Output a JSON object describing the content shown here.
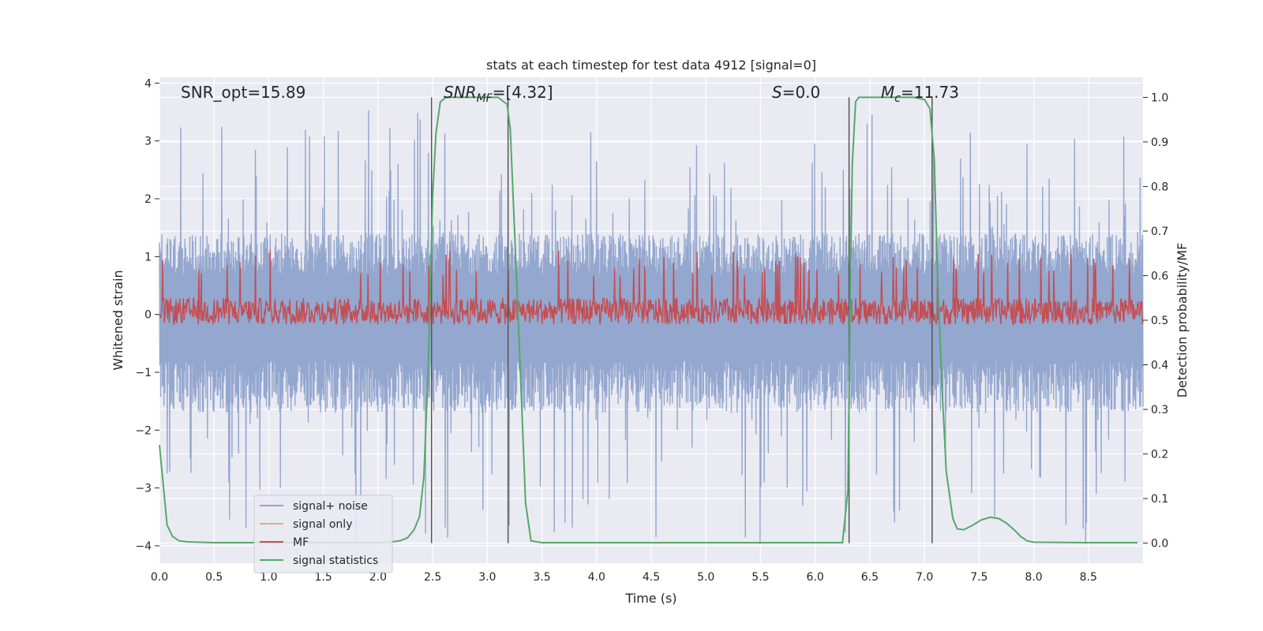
{
  "chart_data": {
    "type": "line",
    "title": "stats at each timestep for test data 4912 [signal=0]",
    "xlabel": "Time (s)",
    "ylabel": "Whitened strain",
    "y2label": "Detection probability/MF",
    "xlim": [
      0.0,
      9.0
    ],
    "ylim": [
      -4.3,
      4.1
    ],
    "y2lim": [
      -0.045,
      1.045
    ],
    "xticks": [
      0.0,
      0.5,
      1.0,
      1.5,
      2.0,
      2.5,
      3.0,
      3.5,
      4.0,
      4.5,
      5.0,
      5.5,
      6.0,
      6.5,
      7.0,
      7.5,
      8.0,
      8.5
    ],
    "xtick_labels": [
      "0.0",
      "0.5",
      "1.0",
      "1.5",
      "2.0",
      "2.5",
      "3.0",
      "3.5",
      "4.0",
      "4.5",
      "5.0",
      "5.5",
      "6.0",
      "6.5",
      "7.0",
      "7.5",
      "8.0",
      "8.5"
    ],
    "yticks": [
      4,
      3,
      2,
      1,
      0,
      -1,
      -2,
      -3,
      -4
    ],
    "ytick_labels": [
      "4",
      "3",
      "2",
      "1",
      "0",
      "−1",
      "−2",
      "−3",
      "−4"
    ],
    "y2ticks": [
      1.0,
      0.9,
      0.8,
      0.7,
      0.6,
      0.5,
      0.4,
      0.3,
      0.2,
      0.1,
      0.0
    ],
    "y2tick_labels": [
      "1.0",
      "0.9",
      "0.8",
      "0.7",
      "0.6",
      "0.5",
      "0.4",
      "0.3",
      "0.2",
      "0.1",
      "0.0"
    ],
    "grid": true,
    "legend_position": "lower-left",
    "series": [
      {
        "name": "signal+ noise",
        "color": "#8fa3cc",
        "axis": "left",
        "description_stats": {
          "x_range": [
            0.0,
            9.0
          ],
          "band_min": -1.7,
          "band_max": 1.4,
          "peak_max": 3.55,
          "peak_min": -4.0
        }
      },
      {
        "name": "signal only",
        "color": "#e8a588",
        "axis": "left"
      },
      {
        "name": "MF",
        "color": "#c44e52",
        "axis": "right",
        "description_stats": {
          "x_range": [
            0.0,
            9.0
          ],
          "base": 0.52,
          "typical_max": 0.6,
          "peak_max": 0.66
        }
      },
      {
        "name": "signal statistics",
        "color": "#55a868",
        "axis": "right",
        "x": [
          0.0,
          0.07,
          0.12,
          0.18,
          0.25,
          0.35,
          0.5,
          1.0,
          1.5,
          2.0,
          2.1,
          2.2,
          2.27,
          2.33,
          2.38,
          2.42,
          2.46,
          2.5,
          2.53,
          2.57,
          2.62,
          2.7,
          2.8,
          2.9,
          3.0,
          3.1,
          3.15,
          3.18,
          3.21,
          3.25,
          3.3,
          3.35,
          3.4,
          3.5,
          4.0,
          4.5,
          5.0,
          5.5,
          6.0,
          6.25,
          6.3,
          6.32,
          6.34,
          6.37,
          6.4,
          6.5,
          6.7,
          6.9,
          7.0,
          7.05,
          7.09,
          7.12,
          7.16,
          7.2,
          7.26,
          7.3,
          7.36,
          7.44,
          7.52,
          7.6,
          7.68,
          7.75,
          7.82,
          7.88,
          7.94,
          8.0,
          8.5,
          8.95
        ],
        "values": [
          0.22,
          0.04,
          0.015,
          0.005,
          0.003,
          0.002,
          0.001,
          0.001,
          0.001,
          0.001,
          0.002,
          0.005,
          0.012,
          0.03,
          0.06,
          0.15,
          0.4,
          0.78,
          0.92,
          0.99,
          1.0,
          1.0,
          1.0,
          1.0,
          1.0,
          1.0,
          0.99,
          0.985,
          0.93,
          0.7,
          0.4,
          0.09,
          0.005,
          0.001,
          0.001,
          0.001,
          0.001,
          0.001,
          0.001,
          0.001,
          0.12,
          0.55,
          0.85,
          0.99,
          1.0,
          1.0,
          1.0,
          1.0,
          0.995,
          0.975,
          0.86,
          0.6,
          0.35,
          0.16,
          0.055,
          0.032,
          0.03,
          0.04,
          0.052,
          0.058,
          0.055,
          0.045,
          0.03,
          0.015,
          0.005,
          0.002,
          0.001,
          0.001
        ]
      }
    ],
    "vertical_lines": [
      {
        "x": 2.49,
        "color": "#555555"
      },
      {
        "x": 3.19,
        "color": "#555555"
      },
      {
        "x": 6.31,
        "color": "#555555"
      },
      {
        "x": 7.07,
        "color": "#555555"
      }
    ],
    "annotations": {
      "snr_opt": "SNR_opt=15.89",
      "snr_mf_name": "SNR",
      "snr_mf_sub": "MF",
      "snr_mf_value": "=[4.32]",
      "s_name": "S",
      "s_value": "=0.0",
      "mc_name": "M",
      "mc_sub": "c",
      "mc_value": "=11.73"
    }
  },
  "colors": {
    "plot_background": "#eaeaf2",
    "grid": "#ffffff",
    "text": "#262626"
  }
}
